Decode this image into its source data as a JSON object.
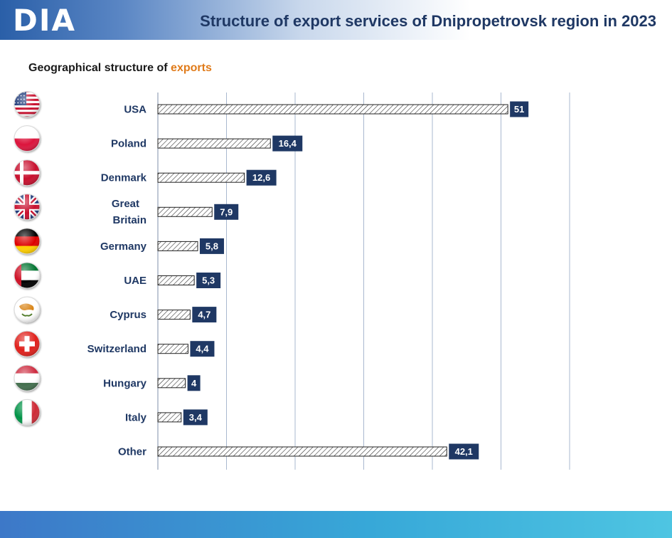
{
  "header": {
    "logo": "DIA",
    "title": "Structure of export services of Dnipropetrovsk region in 2023"
  },
  "subtitle": {
    "prefix": "Geographical  structure  of ",
    "accent": "exports"
  },
  "colors": {
    "title": "#1f3864",
    "label_box": "#1f3864",
    "accent": "#e07b1a",
    "grid": "#a9b8cf"
  },
  "chart_data": {
    "type": "bar",
    "orientation": "horizontal",
    "categories": [
      "USA",
      "Poland",
      "Denmark",
      "Great Britain",
      "Germany",
      "UAE",
      "Cyprus",
      "Switzerland",
      "Hungary",
      "Italy",
      "Other"
    ],
    "values": [
      51,
      16.4,
      12.6,
      7.9,
      5.8,
      5.3,
      4.7,
      4.4,
      4,
      3.4,
      42.1
    ],
    "value_labels": [
      "51",
      "16,4",
      "12,6",
      "7,9",
      "5,8",
      "5,3",
      "4,7",
      "4,4",
      "4",
      "3,4",
      "42,1"
    ],
    "flags": [
      "usa-flag-icon",
      "poland-flag-icon",
      "denmark-flag-icon",
      "great-britain-flag-icon",
      "germany-flag-icon",
      "uae-flag-icon",
      "cyprus-flag-icon",
      "switzerland-flag-icon",
      "hungary-flag-icon",
      "italy-flag-icon",
      ""
    ],
    "xlim": [
      0,
      60
    ],
    "gridline_step": 10,
    "grid": true,
    "legend": "none",
    "bar_fill": "diagonal hatch"
  }
}
